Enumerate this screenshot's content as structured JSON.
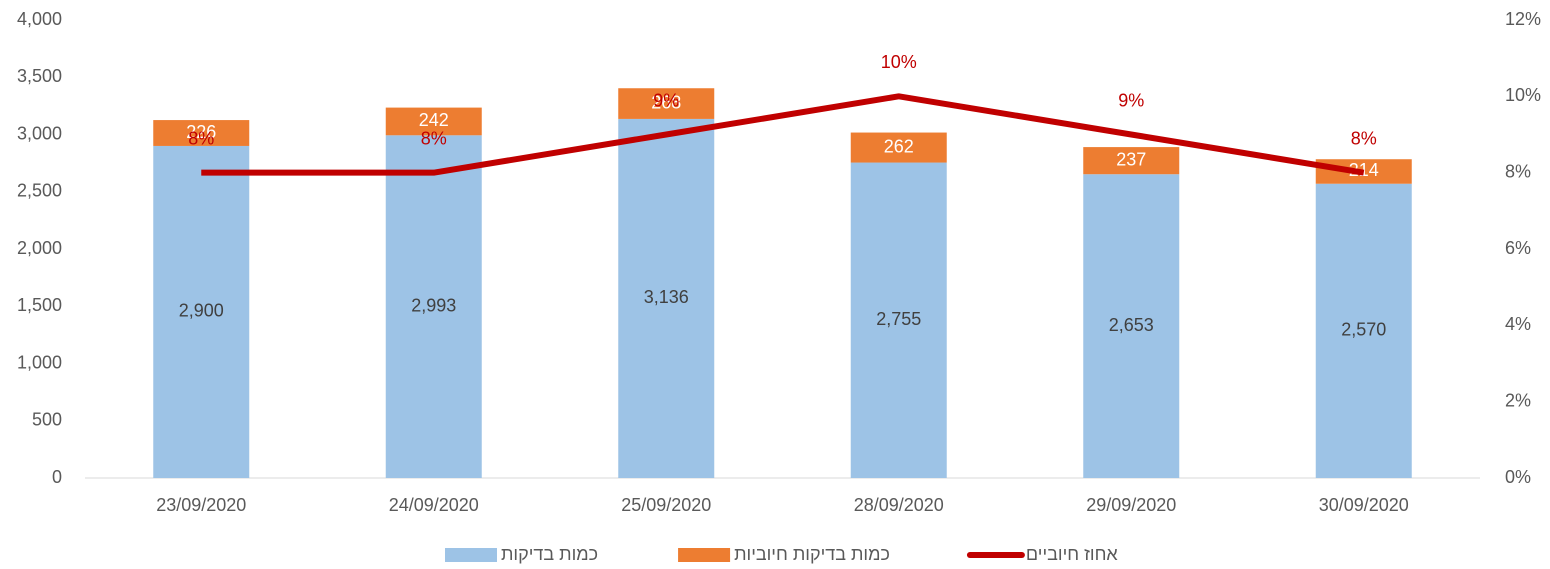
{
  "chart_data": {
    "type": "bar",
    "stacked": true,
    "categories": [
      "23/09/2020",
      "24/09/2020",
      "25/09/2020",
      "28/09/2020",
      "29/09/2020",
      "30/09/2020"
    ],
    "series": [
      {
        "name": "כמות בדיקות",
        "color": "#9dc3e6",
        "values": [
          2900,
          2993,
          3136,
          2755,
          2653,
          2570
        ],
        "value_labels": [
          "2,900",
          "2,993",
          "3,136",
          "2,755",
          "2,653",
          "2,570"
        ]
      },
      {
        "name": "כמות בדיקות חיוביות",
        "color": "#ed7d31",
        "values": [
          226,
          242,
          268,
          262,
          237,
          214
        ]
      },
      {
        "name": "אחוז חיוביים",
        "color": "#c00000",
        "type": "line",
        "axis": "y2",
        "values": [
          8,
          8,
          9,
          10,
          9,
          8
        ],
        "value_labels": [
          "8%",
          "8%",
          "9%",
          "10%",
          "9%",
          "8%"
        ]
      }
    ],
    "ylim": [
      0,
      4000
    ],
    "yticks": [
      0,
      500,
      {
        "value": 1000,
        "label": "1,000"
      },
      {
        "value": 1500,
        "label": "1,500"
      },
      {
        "value": 2000,
        "label": "2,000"
      },
      {
        "value": 2500,
        "label": "2,500"
      },
      {
        "value": 3000,
        "label": "3,000"
      },
      {
        "value": 3500,
        "label": "3,500"
      },
      {
        "value": 4000,
        "label": "4,000"
      }
    ],
    "y2lim": [
      0,
      12
    ],
    "y2ticks": [
      {
        "value": 0,
        "label": "0%"
      },
      {
        "value": 2,
        "label": "2%"
      },
      {
        "value": 4,
        "label": "4%"
      },
      {
        "value": 6,
        "label": "6%"
      },
      {
        "value": 8,
        "label": "8%"
      },
      {
        "value": 10,
        "label": "10%"
      },
      {
        "value": 12,
        "label": "12%"
      }
    ],
    "grid": false,
    "legend": "bottom"
  }
}
